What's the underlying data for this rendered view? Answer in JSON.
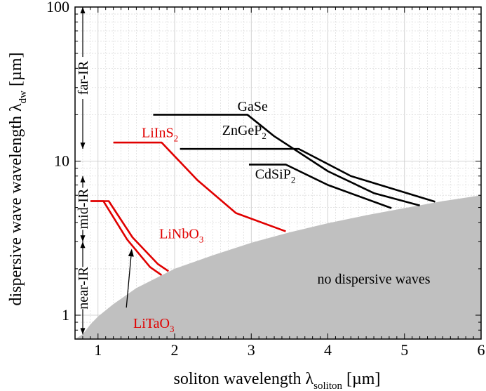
{
  "chart_data": {
    "type": "line",
    "xlabel_main": "soliton wavelength λ",
    "xlabel_sub": "soliton",
    "xlabel_unit": " [µm]",
    "ylabel_main": "dispersive wave wavelength λ",
    "ylabel_sub": "dw",
    "ylabel_unit": " [µm]",
    "xlim": [
      0.7,
      6
    ],
    "ylim": [
      0.7,
      100
    ],
    "y_scale": "log",
    "grid": true,
    "x_ticks": [
      1,
      2,
      3,
      4,
      5,
      6
    ],
    "x_tick_labels": [
      "1",
      "2",
      "3",
      "4",
      "5",
      "6"
    ],
    "y_ticks": [
      1,
      10,
      100
    ],
    "y_tick_labels": [
      "1",
      "10",
      "100"
    ],
    "bands": [
      {
        "label": "far-IR",
        "from": 12,
        "to": 100
      },
      {
        "label": "mid-IR",
        "from": 3,
        "to": 8
      },
      {
        "label": "near-IR",
        "from": 0.75,
        "to": 3
      }
    ],
    "shaded_region": {
      "label": "no dispersive waves",
      "color": "#c0c0c0",
      "boundary_x": [
        0.7,
        0.8,
        0.9,
        1.0,
        1.2,
        1.5,
        2.0,
        2.5,
        3.0,
        3.5,
        4.0,
        4.5,
        5.0,
        5.5,
        6.0
      ],
      "boundary_y": [
        0.62,
        0.75,
        0.87,
        0.98,
        1.18,
        1.5,
        2.0,
        2.45,
        2.95,
        3.45,
        3.95,
        4.45,
        4.95,
        5.5,
        6.0
      ]
    },
    "series": [
      {
        "name": "GaSe",
        "color": "#000000",
        "x": [
          1.72,
          2.95,
          3.3,
          4.0,
          4.6,
          5.2
        ],
        "y": [
          20,
          20,
          14.5,
          8.6,
          6.2,
          5.15
        ]
      },
      {
        "name": "ZnGeP",
        "sub": "2",
        "color": "#000000",
        "x": [
          2.07,
          3.62,
          4.3,
          5.4
        ],
        "y": [
          12,
          12,
          8.0,
          5.45
        ]
      },
      {
        "name": "CdSiP",
        "sub": "2",
        "color": "#000000",
        "x": [
          2.97,
          3.45,
          4.0,
          4.83
        ],
        "y": [
          9.5,
          9.5,
          7.0,
          4.95
        ]
      },
      {
        "name": "LiInS",
        "sub": "2",
        "color": "#e00000",
        "x": [
          1.2,
          1.83,
          2.3,
          2.8,
          3.45
        ],
        "y": [
          13.2,
          13.2,
          7.5,
          4.6,
          3.5
        ]
      },
      {
        "name": "LiNbO",
        "sub": "3",
        "color": "#e00000",
        "x": [
          0.7,
          1.14,
          1.45,
          1.78,
          1.92
        ],
        "y": [
          5.5,
          5.5,
          3.2,
          2.15,
          1.93
        ]
      },
      {
        "name": "LiTaO",
        "sub": "3",
        "color": "#e00000",
        "x": [
          0.7,
          1.07,
          1.38,
          1.68,
          1.83
        ],
        "y": [
          5.5,
          5.5,
          3.1,
          2.05,
          1.82
        ]
      }
    ],
    "annotations": [
      {
        "text": "GaSe",
        "color": "#000000",
        "x": 2.82,
        "y": 21.2
      },
      {
        "text": "ZnGeP",
        "sub": "2",
        "color": "#000000",
        "x": 2.62,
        "y": 14.8
      },
      {
        "text": "CdSiP",
        "sub": "2",
        "color": "#000000",
        "x": 3.05,
        "y": 7.7
      },
      {
        "text": "LiInS",
        "sub": "2",
        "color": "#e00000",
        "x": 1.57,
        "y": 14.3
      },
      {
        "text": "LiNbO",
        "sub": "3",
        "color": "#e00000",
        "x": 1.8,
        "y": 3.15
      },
      {
        "text": "LiTaO",
        "sub": "3",
        "color": "#e00000",
        "x": 1.46,
        "y": 0.83
      }
    ],
    "arrow": {
      "from_x": 1.37,
      "from_y": 1.12,
      "to_x": 1.44,
      "to_y": 2.7
    }
  }
}
